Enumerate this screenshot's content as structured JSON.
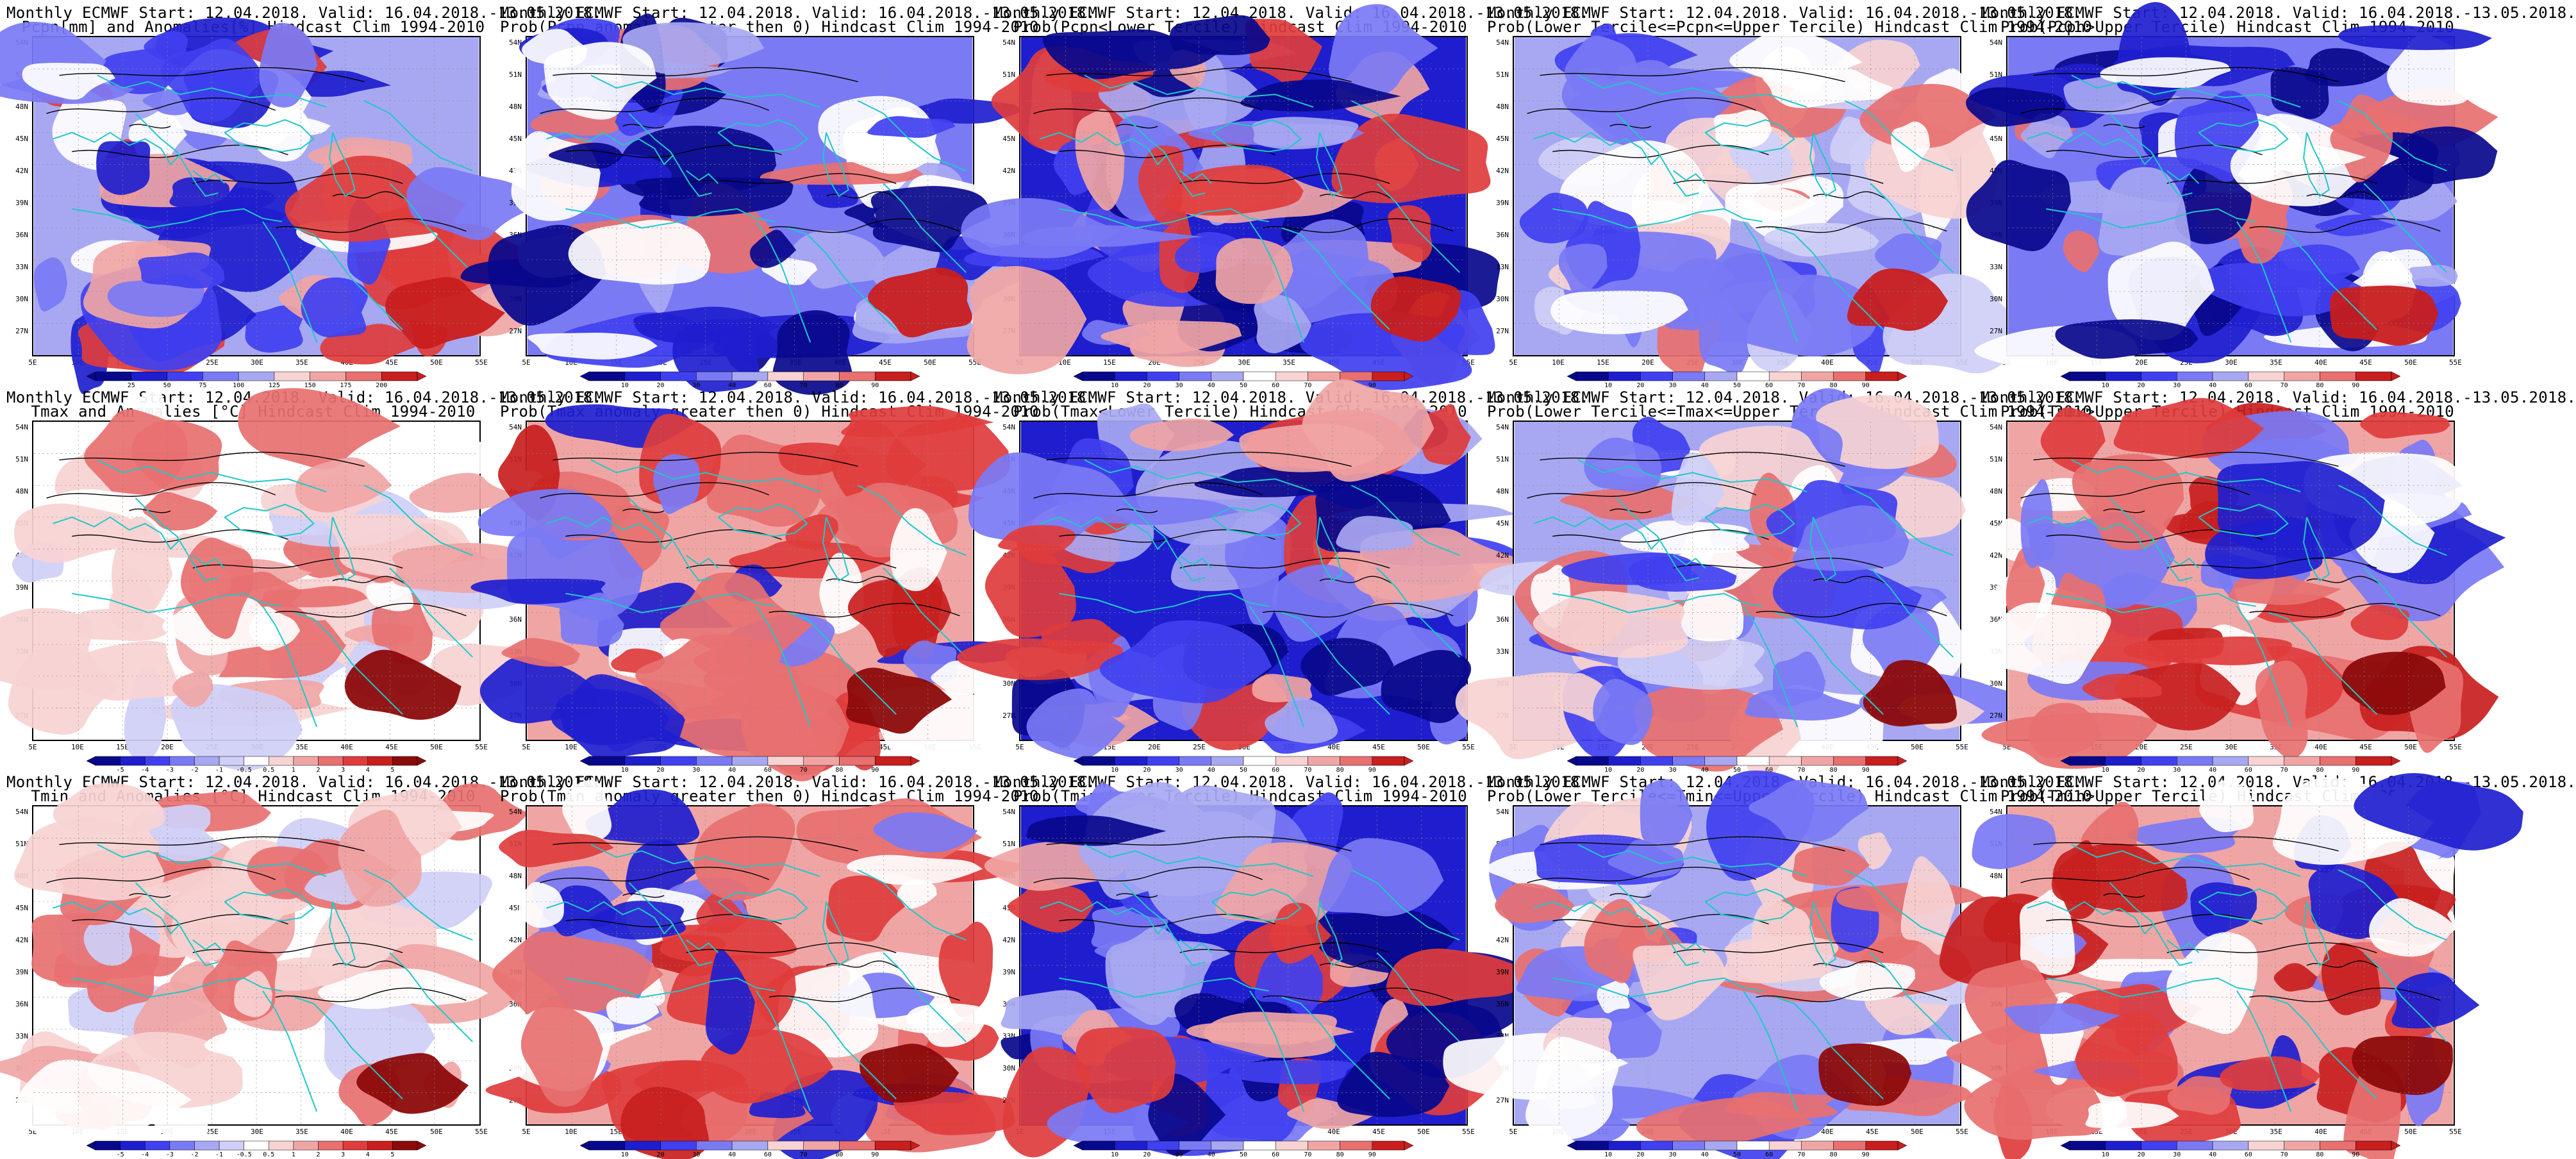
{
  "figure": {
    "panels": [
      {
        "row": 0,
        "col": 0,
        "title1": "Monthly ECMWF Start: 12.04.2018. Valid: 16.04.2018.-13.05.2018.",
        "title2": "Pcpn[mm] and Anomalies[%] Hindcast Clim 1994-2010",
        "scale": "precip_anom",
        "colorbar": [
          "25",
          "50",
          "75",
          "100",
          "125",
          "150",
          "175",
          "200"
        ]
      },
      {
        "row": 0,
        "col": 1,
        "title1": "Monthly ECMWF Start: 12.04.2018. Valid: 16.04.2018.-13.05.2018.",
        "title2": "Prob(Pcpn anomaly greater then 0) Hindcast Clim 1994-2010",
        "scale": "prob",
        "colorbar": [
          "10",
          "20",
          "30",
          "40",
          "60",
          "70",
          "80",
          "90"
        ]
      },
      {
        "row": 0,
        "col": 2,
        "title1": "Monthly ECMWF Start: 12.04.2018. Valid: 16.04.2018.-13.05.2018.",
        "title2": "Prob(Pcpn<Lower Tercile) Hindcast Clim 1994-2010",
        "scale": "prob",
        "colorbar": [
          "10",
          "20",
          "30",
          "40",
          "50",
          "60",
          "70",
          "80",
          "90"
        ]
      },
      {
        "row": 0,
        "col": 3,
        "title1": "Monthly ECMWF Start: 12.04.2018. Valid: 16.04.2018.-13.05.2018.",
        "title2": "Prob(Lower Tercile<=Pcpn<=Upper Tercile) Hindcast Clim 1994-2010",
        "scale": "prob",
        "colorbar": [
          "10",
          "20",
          "30",
          "40",
          "50",
          "60",
          "70",
          "80",
          "90"
        ]
      },
      {
        "row": 0,
        "col": 4,
        "title1": "Monthly ECMWF Start: 12.04.2018. Valid: 16.04.2018.-13.05.2018.",
        "title2": "Prob(Pcpn>Upper Tercile) Hindcast Clim 1994-2010",
        "scale": "prob",
        "colorbar": [
          "10",
          "20",
          "30",
          "40",
          "60",
          "70",
          "80",
          "90"
        ]
      },
      {
        "row": 1,
        "col": 0,
        "title1": "Monthly ECMWF Start: 12.04.2018. Valid: 16.04.2018.-13.05.2018.",
        "title2": "Tmax and Anomalies [°C] Hindcast Clim 1994-2010",
        "scale": "temp_anom",
        "colorbar": [
          "-5",
          "-4",
          "-3",
          "-2",
          "-1",
          "-0.5",
          "0.5",
          "1",
          "2",
          "3",
          "4",
          "5"
        ]
      },
      {
        "row": 1,
        "col": 1,
        "title1": "Monthly ECMWF Start: 12.04.2018. Valid: 16.04.2018.-13.05.2018.",
        "title2": "Prob(Tmax anomaly greater then 0) Hindcast Clim 1994-2010",
        "scale": "prob",
        "colorbar": [
          "10",
          "20",
          "30",
          "40",
          "60",
          "70",
          "80",
          "90"
        ]
      },
      {
        "row": 1,
        "col": 2,
        "title1": "Monthly ECMWF Start: 12.04.2018. Valid: 16.04.2018.-13.05.2018.",
        "title2": "Prob(Tmax<Lower Tercile) Hindcast Clim 1994-2010",
        "scale": "prob",
        "colorbar": [
          "10",
          "20",
          "30",
          "40",
          "50",
          "60",
          "70",
          "80",
          "90"
        ]
      },
      {
        "row": 1,
        "col": 3,
        "title1": "Monthly ECMWF Start: 12.04.2018. Valid: 16.04.2018.-13.05.2018.",
        "title2": "Prob(Lower Tercile<=Tmax<=Upper Tercile) Hindcast Clim 1994-2010",
        "scale": "prob",
        "colorbar": [
          "10",
          "20",
          "30",
          "40",
          "50",
          "60",
          "70",
          "80",
          "90"
        ]
      },
      {
        "row": 1,
        "col": 4,
        "title1": "Monthly ECMWF Start: 12.04.2018. Valid: 16.04.2018.-13.05.2018.",
        "title2": "Prob(Tmax>Upper Tercile) Hindcast Clim 1994-2010",
        "scale": "prob",
        "colorbar": [
          "10",
          "20",
          "30",
          "40",
          "60",
          "70",
          "80",
          "90"
        ]
      },
      {
        "row": 2,
        "col": 0,
        "title1": "Monthly ECMWF Start: 12.04.2018. Valid: 16.04.2018.-13.05.2018.",
        "title2": "Tmin and Anomalies [°C] Hindcast Clim 1994-2010",
        "scale": "temp_anom",
        "colorbar": [
          "-5",
          "-4",
          "-3",
          "-2",
          "-1",
          "-0.5",
          "0.5",
          "1",
          "2",
          "3",
          "4",
          "5"
        ]
      },
      {
        "row": 2,
        "col": 1,
        "title1": "Monthly ECMWF Start: 12.04.2018. Valid: 16.04.2018.-13.05.2018.",
        "title2": "Prob(Tmin anomaly greater then 0) Hindcast Clim 1994-2010",
        "scale": "prob",
        "colorbar": [
          "10",
          "20",
          "30",
          "40",
          "60",
          "70",
          "80",
          "90"
        ]
      },
      {
        "row": 2,
        "col": 2,
        "title1": "Monthly ECMWF Start: 12.04.2018. Valid: 16.04.2018.-13.05.2018.",
        "title2": "Prob(Tmin<Lower Tercile) Hindcast Clim 1994-2010",
        "scale": "prob",
        "colorbar": [
          "10",
          "20",
          "30",
          "40",
          "50",
          "60",
          "70",
          "80",
          "90"
        ]
      },
      {
        "row": 2,
        "col": 3,
        "title1": "Monthly ECMWF Start: 12.04.2018. Valid: 16.04.2018.-13.05.2018.",
        "title2": "Prob(Lower Tercile<=Tmin<=Upper Tercile) Hindcast Clim 1994-2010",
        "scale": "prob",
        "colorbar": [
          "10",
          "20",
          "30",
          "40",
          "50",
          "60",
          "70",
          "80",
          "90"
        ]
      },
      {
        "row": 2,
        "col": 4,
        "title1": "Monthly ECMWF Start: 12.04.2018. Valid: 16.04.2018.-13.05.2018.",
        "title2": "Prob(Tmin>Upper Tercile) Hindcast Clim 1994-2010",
        "scale": "prob",
        "colorbar": [
          "10",
          "20",
          "30",
          "40",
          "60",
          "70",
          "80",
          "90"
        ]
      }
    ],
    "lat_labels": [
      "54N",
      "51N",
      "48N",
      "45N",
      "42N",
      "39N",
      "36N",
      "33N",
      "30N",
      "27N"
    ],
    "lon_labels": [
      "5E",
      "10E",
      "15E",
      "20E",
      "25E",
      "30E",
      "35E",
      "40E",
      "45E",
      "50E",
      "55E"
    ],
    "colors": {
      "blues": [
        "#08088c",
        "#1e1ecf",
        "#4040f0",
        "#7a7af5",
        "#a8a8f2",
        "#cfcff7"
      ],
      "reds": [
        "#f7d3d3",
        "#f0a5a5",
        "#e87070",
        "#e03c3c",
        "#c81e1e",
        "#8c0a0a"
      ],
      "coast": "#20c8c8",
      "contour": "#000000"
    }
  }
}
